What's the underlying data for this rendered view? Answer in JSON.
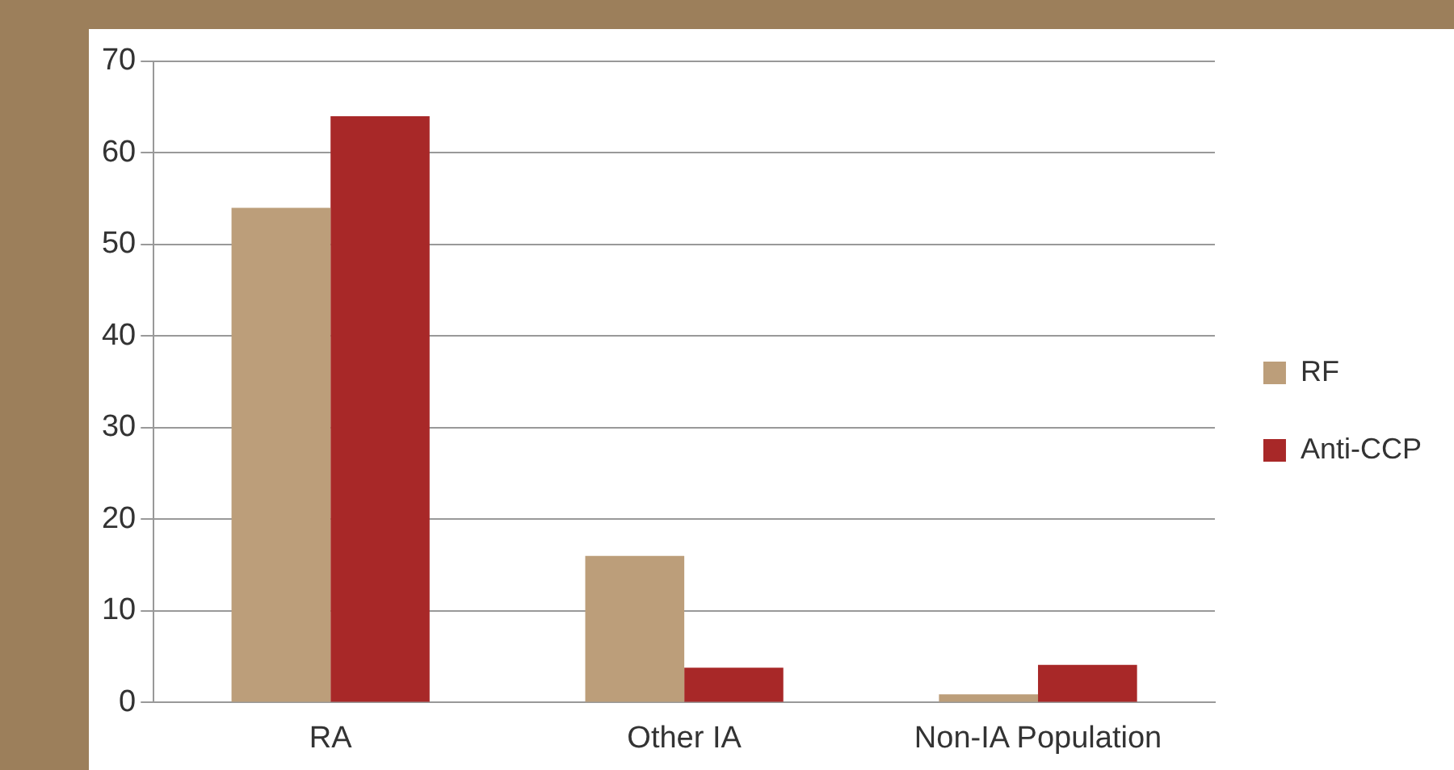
{
  "chart_data": {
    "type": "bar",
    "categories": [
      "RA",
      "Other IA",
      "Non-IA Population"
    ],
    "series": [
      {
        "name": "RF",
        "color": "#bc9e7a",
        "values": [
          54,
          16,
          0.9
        ]
      },
      {
        "name": "Anti-CCP",
        "color": "#a82828",
        "values": [
          64,
          3.8,
          4.1
        ]
      }
    ],
    "ylim": [
      0,
      70
    ],
    "yticks": [
      0,
      10,
      20,
      30,
      40,
      50,
      60,
      70
    ],
    "grid": "y",
    "legend": "right"
  }
}
